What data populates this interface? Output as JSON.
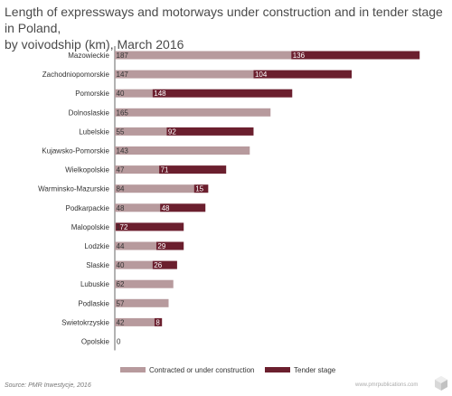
{
  "title_lines": [
    "Length of expressways and motorways under construction and in tender stage in Poland,",
    "by voivodship (km), March 2016"
  ],
  "source": "Source: PMR Inwestycje, 2016",
  "site": "www.pmrpublications.com",
  "colors": {
    "contracted": "#b79a9d",
    "tender": "#6b1f2e",
    "axis": "#666666"
  },
  "chart_data": {
    "type": "bar",
    "orientation": "horizontal",
    "stacked": true,
    "categories": [
      "Mazowieckie",
      "Zachodniopomorskie",
      "Pomorskie",
      "Dolnoslaskie",
      "Lubelskie",
      "Kujawsko-Pomorskie",
      "Wielkopolskie",
      "Warminsko-Mazurskie",
      "Podkarpackie",
      "Malopolskie",
      "Lodzkie",
      "Slaskie",
      "Lubuskie",
      "Podlaskie",
      "Swietokrzyskie",
      "Opolskie"
    ],
    "series": [
      {
        "name": "Contracted or under construction",
        "values": [
          187,
          147,
          40,
          165,
          55,
          143,
          47,
          84,
          48,
          1,
          44,
          40,
          62,
          57,
          42,
          0
        ]
      },
      {
        "name": "Tender stage",
        "values": [
          136,
          104,
          148,
          0,
          92,
          0,
          71,
          15,
          48,
          72,
          29,
          26,
          0,
          0,
          8,
          0
        ]
      }
    ],
    "data_labels": [
      [
        "187",
        "136"
      ],
      [
        "147",
        "104"
      ],
      [
        "40",
        "148"
      ],
      [
        "165",
        ""
      ],
      [
        "55",
        "92"
      ],
      [
        "143",
        ""
      ],
      [
        "47",
        "71"
      ],
      [
        "84",
        "15"
      ],
      [
        "48",
        "48"
      ],
      [
        "1",
        "72"
      ],
      [
        "44",
        "29"
      ],
      [
        "40",
        "26"
      ],
      [
        "62",
        ""
      ],
      [
        "57",
        ""
      ],
      [
        "42",
        "8"
      ],
      [
        "0",
        ""
      ]
    ],
    "legend_position": "bottom",
    "grid": false
  }
}
